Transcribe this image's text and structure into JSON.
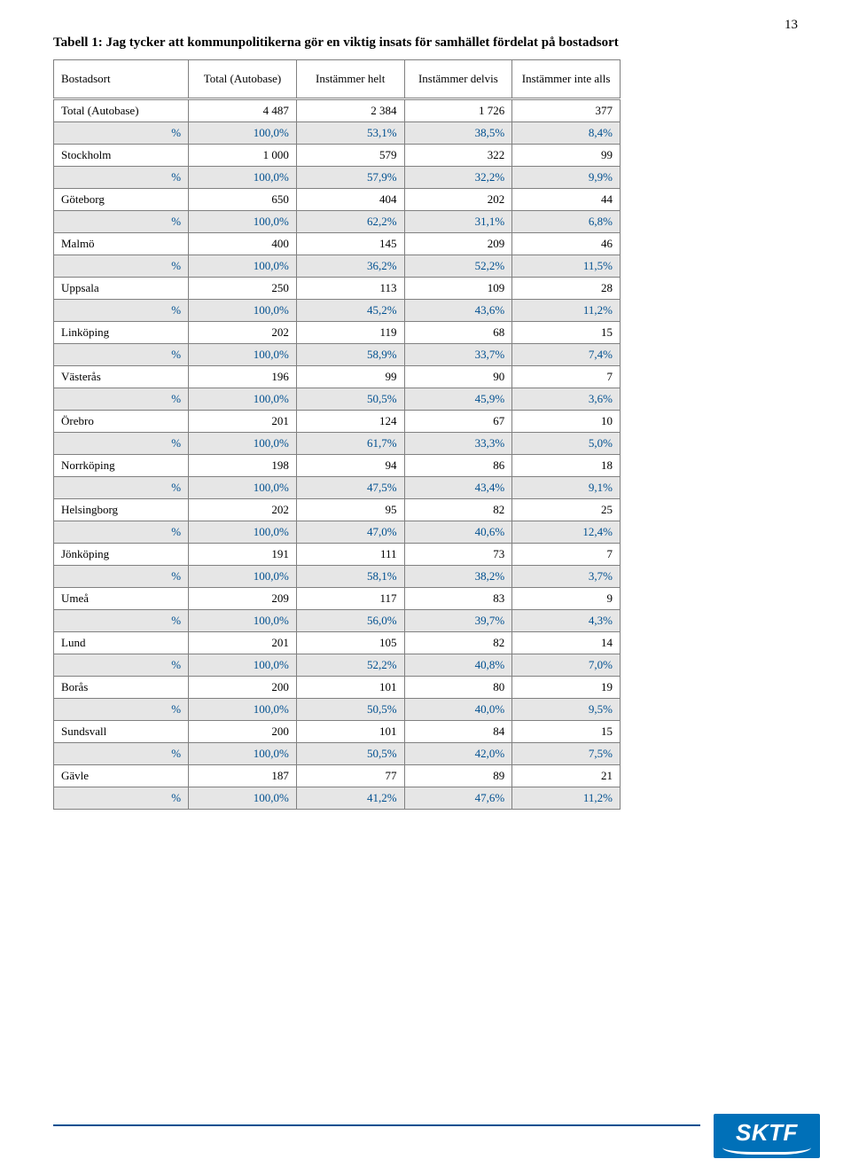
{
  "page_number": "13",
  "caption": "Tabell 1: Jag tycker att kommunpolitikerna gör en viktig insats för samhället fördelat på bostadsort",
  "columns": [
    "Bostadsort",
    "Total (Autobase)",
    "Instämmer helt",
    "Instämmer delvis",
    "Instämmer inte alls"
  ],
  "pct_label": "%",
  "rows": [
    {
      "label": "Total (Autobase)",
      "vals": [
        "4 487",
        "2 384",
        "1 726",
        "377"
      ],
      "pct": [
        "100,0%",
        "53,1%",
        "38,5%",
        "8,4%"
      ]
    },
    {
      "label": "Stockholm",
      "vals": [
        "1 000",
        "579",
        "322",
        "99"
      ],
      "pct": [
        "100,0%",
        "57,9%",
        "32,2%",
        "9,9%"
      ]
    },
    {
      "label": "Göteborg",
      "vals": [
        "650",
        "404",
        "202",
        "44"
      ],
      "pct": [
        "100,0%",
        "62,2%",
        "31,1%",
        "6,8%"
      ]
    },
    {
      "label": "Malmö",
      "vals": [
        "400",
        "145",
        "209",
        "46"
      ],
      "pct": [
        "100,0%",
        "36,2%",
        "52,2%",
        "11,5%"
      ]
    },
    {
      "label": "Uppsala",
      "vals": [
        "250",
        "113",
        "109",
        "28"
      ],
      "pct": [
        "100,0%",
        "45,2%",
        "43,6%",
        "11,2%"
      ]
    },
    {
      "label": "Linköping",
      "vals": [
        "202",
        "119",
        "68",
        "15"
      ],
      "pct": [
        "100,0%",
        "58,9%",
        "33,7%",
        "7,4%"
      ]
    },
    {
      "label": "Västerås",
      "vals": [
        "196",
        "99",
        "90",
        "7"
      ],
      "pct": [
        "100,0%",
        "50,5%",
        "45,9%",
        "3,6%"
      ]
    },
    {
      "label": "Örebro",
      "vals": [
        "201",
        "124",
        "67",
        "10"
      ],
      "pct": [
        "100,0%",
        "61,7%",
        "33,3%",
        "5,0%"
      ]
    },
    {
      "label": "Norrköping",
      "vals": [
        "198",
        "94",
        "86",
        "18"
      ],
      "pct": [
        "100,0%",
        "47,5%",
        "43,4%",
        "9,1%"
      ]
    },
    {
      "label": "Helsingborg",
      "vals": [
        "202",
        "95",
        "82",
        "25"
      ],
      "pct": [
        "100,0%",
        "47,0%",
        "40,6%",
        "12,4%"
      ]
    },
    {
      "label": "Jönköping",
      "vals": [
        "191",
        "111",
        "73",
        "7"
      ],
      "pct": [
        "100,0%",
        "58,1%",
        "38,2%",
        "3,7%"
      ]
    },
    {
      "label": "Umeå",
      "vals": [
        "209",
        "117",
        "83",
        "9"
      ],
      "pct": [
        "100,0%",
        "56,0%",
        "39,7%",
        "4,3%"
      ]
    },
    {
      "label": "Lund",
      "vals": [
        "201",
        "105",
        "82",
        "14"
      ],
      "pct": [
        "100,0%",
        "52,2%",
        "40,8%",
        "7,0%"
      ]
    },
    {
      "label": "Borås",
      "vals": [
        "200",
        "101",
        "80",
        "19"
      ],
      "pct": [
        "100,0%",
        "50,5%",
        "40,0%",
        "9,5%"
      ]
    },
    {
      "label": "Sundsvall",
      "vals": [
        "200",
        "101",
        "84",
        "15"
      ],
      "pct": [
        "100,0%",
        "50,5%",
        "42,0%",
        "7,5%"
      ]
    },
    {
      "label": "Gävle",
      "vals": [
        "187",
        "77",
        "89",
        "21"
      ],
      "pct": [
        "100,0%",
        "41,2%",
        "47,6%",
        "11,2%"
      ]
    }
  ],
  "logo_text": "SKTF"
}
